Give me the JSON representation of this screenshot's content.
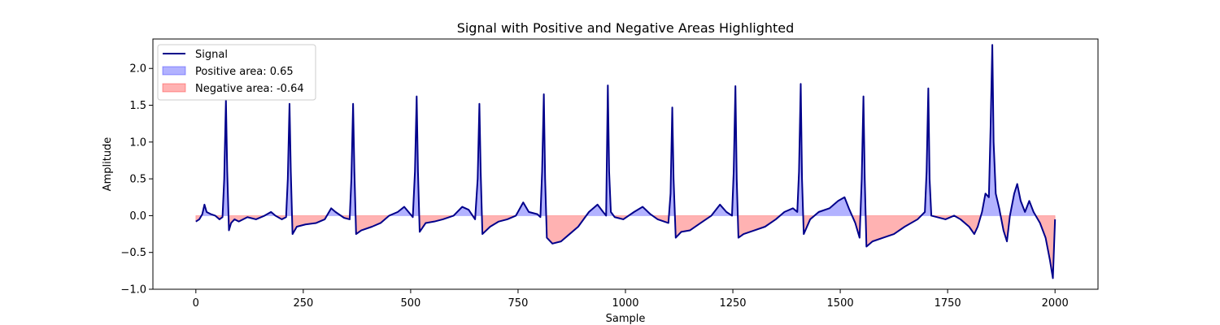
{
  "chart_data": {
    "type": "line",
    "title": "Signal with Positive and Negative Areas Highlighted",
    "xlabel": "Sample",
    "ylabel": "Amplitude",
    "xlim": [
      -100,
      2100
    ],
    "ylim": [
      -1.0,
      2.4
    ],
    "xticks": [
      0,
      250,
      500,
      750,
      1000,
      1250,
      1500,
      1750,
      2000
    ],
    "yticks": [
      -1.0,
      -0.5,
      0.0,
      0.5,
      1.0,
      1.5,
      2.0
    ],
    "grid": false,
    "legend_position": "upper-left",
    "colors": {
      "signal": "#00008b",
      "positive_fill": "#0000ff",
      "negative_fill": "#ff0000"
    },
    "series": [
      {
        "name": "Signal",
        "key_points": [
          [
            0,
            -0.08
          ],
          [
            8,
            -0.05
          ],
          [
            15,
            0.02
          ],
          [
            20,
            0.15
          ],
          [
            25,
            0.05
          ],
          [
            35,
            0.02
          ],
          [
            45,
            0.0
          ],
          [
            55,
            -0.05
          ],
          [
            62,
            -0.02
          ],
          [
            66,
            0.5
          ],
          [
            70,
            1.57
          ],
          [
            73,
            0.6
          ],
          [
            77,
            -0.2
          ],
          [
            82,
            -0.1
          ],
          [
            90,
            -0.05
          ],
          [
            100,
            -0.08
          ],
          [
            120,
            -0.02
          ],
          [
            140,
            -0.05
          ],
          [
            160,
            0.0
          ],
          [
            175,
            0.05
          ],
          [
            185,
            0.0
          ],
          [
            200,
            -0.05
          ],
          [
            210,
            -0.02
          ],
          [
            214,
            0.5
          ],
          [
            218,
            1.52
          ],
          [
            221,
            0.6
          ],
          [
            225,
            -0.25
          ],
          [
            235,
            -0.15
          ],
          [
            255,
            -0.12
          ],
          [
            280,
            -0.1
          ],
          [
            300,
            -0.05
          ],
          [
            315,
            0.1
          ],
          [
            325,
            0.05
          ],
          [
            345,
            -0.03
          ],
          [
            358,
            -0.05
          ],
          [
            362,
            0.5
          ],
          [
            366,
            1.52
          ],
          [
            369,
            0.6
          ],
          [
            373,
            -0.25
          ],
          [
            385,
            -0.2
          ],
          [
            410,
            -0.15
          ],
          [
            430,
            -0.1
          ],
          [
            450,
            0.0
          ],
          [
            470,
            0.05
          ],
          [
            485,
            0.12
          ],
          [
            495,
            0.05
          ],
          [
            505,
            -0.02
          ],
          [
            510,
            0.6
          ],
          [
            514,
            1.62
          ],
          [
            517,
            0.6
          ],
          [
            521,
            -0.22
          ],
          [
            535,
            -0.1
          ],
          [
            555,
            -0.08
          ],
          [
            575,
            -0.05
          ],
          [
            600,
            0.0
          ],
          [
            620,
            0.12
          ],
          [
            635,
            0.08
          ],
          [
            650,
            -0.05
          ],
          [
            656,
            0.5
          ],
          [
            660,
            1.52
          ],
          [
            663,
            0.6
          ],
          [
            667,
            -0.25
          ],
          [
            685,
            -0.15
          ],
          [
            705,
            -0.08
          ],
          [
            725,
            -0.05
          ],
          [
            745,
            0.0
          ],
          [
            762,
            0.18
          ],
          [
            775,
            0.05
          ],
          [
            795,
            0.02
          ],
          [
            802,
            -0.02
          ],
          [
            806,
            0.6
          ],
          [
            810,
            1.65
          ],
          [
            813,
            0.5
          ],
          [
            817,
            -0.3
          ],
          [
            830,
            -0.38
          ],
          [
            850,
            -0.35
          ],
          [
            870,
            -0.25
          ],
          [
            890,
            -0.15
          ],
          [
            915,
            0.05
          ],
          [
            935,
            0.15
          ],
          [
            948,
            0.05
          ],
          [
            955,
            0.0
          ],
          [
            959,
            1.77
          ],
          [
            962,
            0.6
          ],
          [
            966,
            0.05
          ],
          [
            975,
            -0.02
          ],
          [
            995,
            -0.05
          ],
          [
            1020,
            0.05
          ],
          [
            1040,
            0.12
          ],
          [
            1058,
            0.02
          ],
          [
            1075,
            -0.05
          ],
          [
            1100,
            -0.1
          ],
          [
            1105,
            0.3
          ],
          [
            1109,
            1.47
          ],
          [
            1112,
            0.5
          ],
          [
            1117,
            -0.3
          ],
          [
            1130,
            -0.22
          ],
          [
            1150,
            -0.2
          ],
          [
            1175,
            -0.1
          ],
          [
            1200,
            0.0
          ],
          [
            1220,
            0.15
          ],
          [
            1235,
            0.05
          ],
          [
            1248,
            0.0
          ],
          [
            1252,
            0.6
          ],
          [
            1256,
            1.76
          ],
          [
            1259,
            0.5
          ],
          [
            1263,
            -0.3
          ],
          [
            1275,
            -0.25
          ],
          [
            1300,
            -0.2
          ],
          [
            1325,
            -0.15
          ],
          [
            1350,
            -0.05
          ],
          [
            1370,
            0.05
          ],
          [
            1390,
            0.1
          ],
          [
            1400,
            0.05
          ],
          [
            1404,
            0.6
          ],
          [
            1408,
            1.79
          ],
          [
            1411,
            0.5
          ],
          [
            1415,
            -0.25
          ],
          [
            1430,
            -0.05
          ],
          [
            1450,
            0.05
          ],
          [
            1475,
            0.1
          ],
          [
            1495,
            0.2
          ],
          [
            1510,
            0.25
          ],
          [
            1520,
            0.1
          ],
          [
            1535,
            -0.1
          ],
          [
            1545,
            -0.3
          ],
          [
            1550,
            0.5
          ],
          [
            1554,
            1.62
          ],
          [
            1557,
            0.5
          ],
          [
            1561,
            -0.42
          ],
          [
            1575,
            -0.35
          ],
          [
            1600,
            -0.3
          ],
          [
            1625,
            -0.25
          ],
          [
            1650,
            -0.15
          ],
          [
            1680,
            -0.05
          ],
          [
            1697,
            0.05
          ],
          [
            1701,
            0.6
          ],
          [
            1705,
            1.73
          ],
          [
            1708,
            0.5
          ],
          [
            1712,
            0.0
          ],
          [
            1725,
            -0.02
          ],
          [
            1745,
            -0.05
          ],
          [
            1765,
            0.0
          ],
          [
            1780,
            -0.05
          ],
          [
            1800,
            -0.15
          ],
          [
            1812,
            -0.25
          ],
          [
            1820,
            -0.15
          ],
          [
            1830,
            0.05
          ],
          [
            1838,
            0.3
          ],
          [
            1846,
            0.25
          ],
          [
            1850,
            1.2
          ],
          [
            1854,
            2.32
          ],
          [
            1857,
            1.0
          ],
          [
            1862,
            0.3
          ],
          [
            1870,
            0.1
          ],
          [
            1880,
            -0.2
          ],
          [
            1888,
            -0.35
          ],
          [
            1895,
            0.0
          ],
          [
            1905,
            0.3
          ],
          [
            1912,
            0.43
          ],
          [
            1920,
            0.2
          ],
          [
            1930,
            0.05
          ],
          [
            1940,
            0.2
          ],
          [
            1950,
            0.05
          ],
          [
            1965,
            -0.1
          ],
          [
            1978,
            -0.3
          ],
          [
            1988,
            -0.6
          ],
          [
            1995,
            -0.85
          ],
          [
            2000,
            -0.05
          ]
        ]
      },
      {
        "name": "Positive area: 0.65"
      },
      {
        "name": "Negative area: -0.64"
      }
    ]
  }
}
